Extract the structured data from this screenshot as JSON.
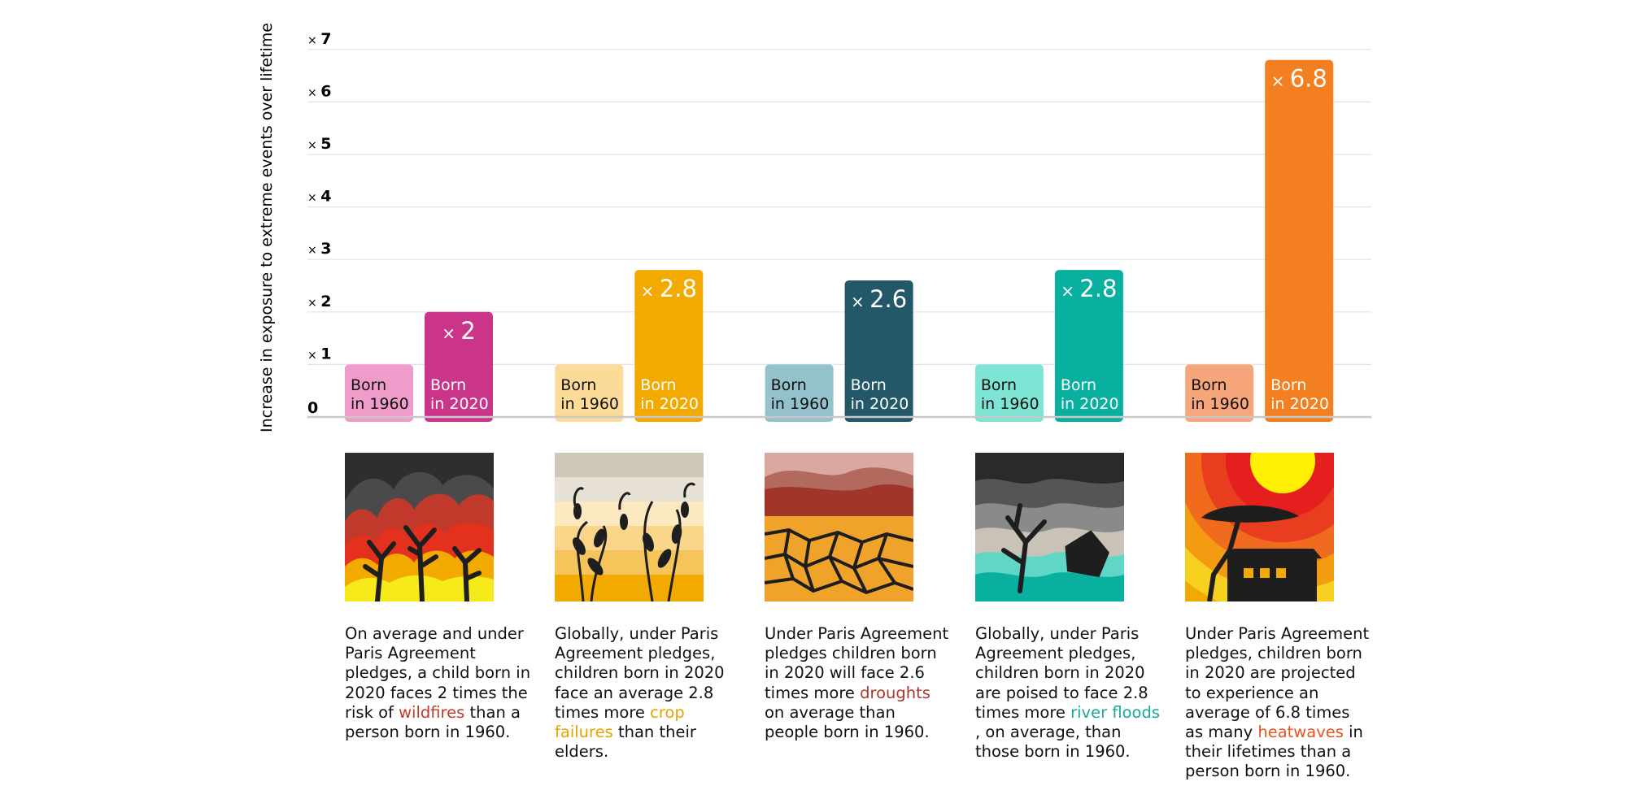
{
  "chart_data": {
    "type": "bar",
    "ylabel": "Increase in exposure to extreme events over lifetime",
    "y_ticks": [
      "0",
      "× 1",
      "× 2",
      "× 3",
      "× 4",
      "× 5",
      "× 6",
      "× 7"
    ],
    "ylim": [
      0,
      7
    ],
    "grid": true,
    "value_prefix": "×",
    "groups": [
      {
        "event": "wildfires",
        "bars": [
          {
            "line1": "Born",
            "line2": "in 1960",
            "value": 1,
            "color": "#f09ccb",
            "text_color": "#111111"
          },
          {
            "line1": "Born",
            "line2": "in 2020",
            "value": 2,
            "label": "2",
            "color": "#cb3589",
            "text_color": "#ffffff"
          }
        ]
      },
      {
        "event": "crop failures",
        "bars": [
          {
            "line1": "Born",
            "line2": "in 1960",
            "value": 1,
            "color": "#fbdb97",
            "text_color": "#111111"
          },
          {
            "line1": "Born",
            "line2": "in 2020",
            "value": 2.8,
            "label": "2.8",
            "color": "#f2a900",
            "text_color": "#ffffff"
          }
        ]
      },
      {
        "event": "droughts",
        "bars": [
          {
            "line1": "Born",
            "line2": "in 1960",
            "value": 1,
            "color": "#93c1cc",
            "text_color": "#111111"
          },
          {
            "line1": "Born",
            "line2": "in 2020",
            "value": 2.6,
            "label": "2.6",
            "color": "#235869",
            "text_color": "#ffffff"
          }
        ]
      },
      {
        "event": "river floods",
        "bars": [
          {
            "line1": "Born",
            "line2": "in 1960",
            "value": 1,
            "color": "#7ee4d3",
            "text_color": "#111111"
          },
          {
            "line1": "Born",
            "line2": "in 2020",
            "value": 2.8,
            "label": "2.8",
            "color": "#0ab09f",
            "text_color": "#ffffff"
          }
        ]
      },
      {
        "event": "heatwaves",
        "bars": [
          {
            "line1": "Born",
            "line2": "in 1960",
            "value": 1,
            "color": "#f7a57b",
            "text_color": "#111111"
          },
          {
            "line1": "Born",
            "line2": "in 2020",
            "value": 6.8,
            "label": "6.8",
            "color": "#f47f20",
            "text_color": "#ffffff"
          }
        ]
      }
    ]
  },
  "illustrations": [
    {
      "icon": "wildfire-icon"
    },
    {
      "icon": "crop-failure-icon"
    },
    {
      "icon": "drought-icon"
    },
    {
      "icon": "river-flood-icon"
    },
    {
      "icon": "heatwave-icon"
    }
  ],
  "descriptions": [
    {
      "before": "On average and under Paris Agreement pledges, a child born in 2020 faces 2 times the risk of ",
      "highlight": "wildfires",
      "after": " than a person born in 1960.",
      "color": "#c0392b"
    },
    {
      "before": "Globally, under Paris Agreement pledges, children born in 2020 face an average 2.8 times  more ",
      "highlight": "crop failures",
      "after": " than their elders.",
      "color": "#e8a300"
    },
    {
      "before": "Under Paris Agreement pledges children born in 2020 will face 2.6 times more ",
      "highlight": "droughts",
      "after": " on average than people born in 1960.",
      "color": "#a8392b"
    },
    {
      "before": "Globally, under Paris Agreement pledges, children born in 2020 are poised to face 2.8 times more ",
      "highlight": "river floods",
      "after": " , on average, than those born in 1960.",
      "color": "#17a99a"
    },
    {
      "before": "Under Paris Agreement pledges, children born in 2020 are projected to experience an average of 6.8 times  as many ",
      "highlight": "heatwaves",
      "after": "  in their lifetimes than a person born in 1960.",
      "color": "#e5561d"
    }
  ]
}
